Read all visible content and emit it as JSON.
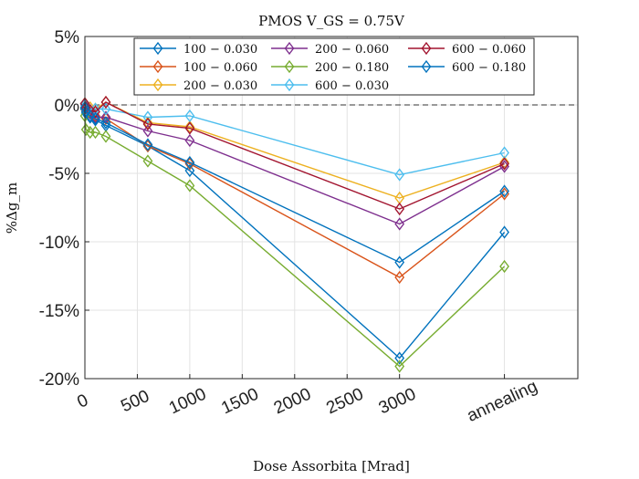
{
  "chart_data": {
    "type": "line",
    "title": "PMOS V_GS = 0.75V",
    "xlabel": "Dose Assorbita [Mrad]",
    "ylabel": "%Δg_m",
    "x_positions": [
      0,
      10,
      50,
      100,
      200,
      600,
      1000,
      3000,
      4000
    ],
    "x_tick_values": [
      0,
      500,
      1000,
      1500,
      2000,
      2500,
      3000,
      4000
    ],
    "x_tick_labels": [
      "0",
      "500",
      "1000",
      "1500",
      "2000",
      "2500",
      "3000",
      "annealing"
    ],
    "xlim": [
      0,
      4700
    ],
    "ylim": [
      -20,
      5
    ],
    "y_tick_values": [
      5,
      0,
      -5,
      -10,
      -15,
      -20
    ],
    "y_tick_labels": [
      "5%",
      "0%",
      "-5%",
      "-10%",
      "-15%",
      "-20%"
    ],
    "grid": true,
    "reference_line": 0,
    "legend_position": "top",
    "series": [
      {
        "name": "100 − 0.030",
        "color": "#0072BD",
        "values": [
          -0.3,
          -0.6,
          -0.9,
          -1.1,
          -1.5,
          -3.0,
          -4.8,
          -18.5,
          -9.3
        ]
      },
      {
        "name": "100 − 0.060",
        "color": "#D95319",
        "values": [
          -0.2,
          -0.4,
          -0.6,
          -0.8,
          -1.0,
          -3.0,
          -4.3,
          -12.6,
          -6.5
        ]
      },
      {
        "name": "200 − 0.030",
        "color": "#EDB120",
        "values": [
          0.1,
          -0.1,
          -0.2,
          -0.3,
          0.2,
          -1.3,
          -1.6,
          -6.8,
          -4.2
        ]
      },
      {
        "name": "200 − 0.060",
        "color": "#7E2F8E",
        "values": [
          0.0,
          -0.3,
          -0.6,
          -0.9,
          -0.9,
          -1.9,
          -2.6,
          -8.7,
          -4.5
        ]
      },
      {
        "name": "200 − 0.180",
        "color": "#77AC30",
        "values": [
          -0.8,
          -1.8,
          -2.0,
          -2.0,
          -2.3,
          -4.1,
          -5.9,
          -19.1,
          -11.8
        ]
      },
      {
        "name": "600 − 0.030",
        "color": "#4DBEEE",
        "values": [
          0.0,
          -0.3,
          -0.4,
          -0.3,
          -0.3,
          -0.9,
          -0.8,
          -5.1,
          -3.5
        ]
      },
      {
        "name": "600 − 0.060",
        "color": "#A2142F",
        "values": [
          0.1,
          -0.2,
          -0.4,
          -0.5,
          0.2,
          -1.4,
          -1.7,
          -7.6,
          -4.3
        ]
      },
      {
        "name": "600 − 0.180",
        "color": "#0072BD",
        "values": [
          -0.2,
          -0.5,
          -0.8,
          -1.0,
          -1.3,
          -2.9,
          -4.2,
          -11.5,
          -6.3
        ]
      }
    ]
  }
}
